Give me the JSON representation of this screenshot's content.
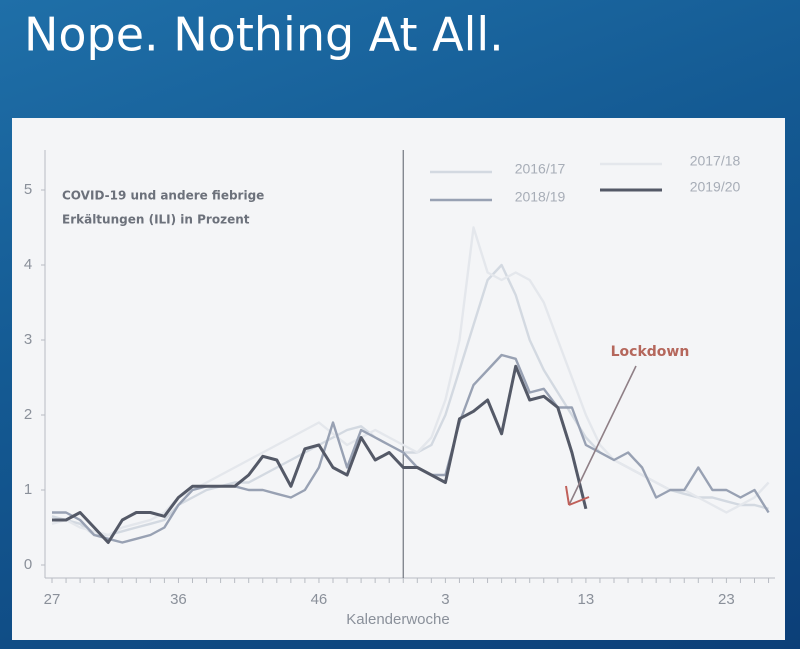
{
  "slide_title": "Nope.  Nothing At All.",
  "chart_data": {
    "type": "line",
    "title": [
      "COVID-19 und andere fiebrige",
      "Erkältungen (ILI) in Prozent"
    ],
    "x_label": "Kalenderwoche",
    "categories": [
      "27",
      null,
      null,
      null,
      null,
      null,
      null,
      null,
      null,
      "36",
      null,
      null,
      null,
      null,
      null,
      null,
      null,
      null,
      null,
      "46",
      null,
      null,
      null,
      null,
      null,
      null,
      null,
      null,
      "3",
      null,
      null,
      null,
      null,
      null,
      null,
      null,
      null,
      null,
      "13",
      null,
      null,
      null,
      null,
      null,
      null,
      null,
      null,
      null,
      "23",
      null,
      null,
      null
    ],
    "ylim": [
      -0.17,
      5.3
    ],
    "yticks": [
      0,
      1,
      2,
      3,
      4,
      5
    ],
    "annotation": "Lockdown",
    "series": [
      {
        "name": "2016/17",
        "color": "#d3d9e1",
        "values": [
          0.65,
          0.6,
          0.55,
          0.4,
          0.4,
          0.45,
          0.5,
          0.55,
          0.6,
          0.8,
          0.9,
          1.0,
          1.05,
          1.1,
          1.1,
          1.2,
          1.3,
          1.4,
          1.5,
          1.6,
          1.7,
          1.8,
          1.85,
          1.7,
          1.6,
          1.5,
          1.5,
          1.6,
          2.0,
          2.6,
          3.2,
          3.8,
          4.0,
          3.6,
          3.0,
          2.6,
          2.3,
          2.0,
          1.7,
          1.5,
          1.4,
          1.3,
          1.2,
          1.1,
          1.0,
          0.95,
          0.9,
          0.9,
          0.85,
          0.8,
          0.8,
          0.75
        ]
      },
      {
        "name": "2017/18",
        "color": "#e4e7ec",
        "values": [
          0.55,
          0.6,
          0.5,
          0.45,
          0.4,
          0.5,
          0.55,
          0.6,
          0.7,
          0.9,
          1.0,
          1.1,
          1.2,
          1.3,
          1.4,
          1.5,
          1.6,
          1.7,
          1.8,
          1.9,
          1.75,
          1.6,
          1.7,
          1.8,
          1.7,
          1.6,
          1.5,
          1.7,
          2.2,
          3.0,
          4.5,
          3.9,
          3.8,
          3.9,
          3.8,
          3.5,
          3.0,
          2.5,
          2.0,
          1.6,
          1.4,
          1.3,
          1.2,
          1.1,
          1.0,
          1.0,
          0.9,
          0.8,
          0.7,
          0.8,
          0.9,
          1.1
        ]
      },
      {
        "name": "2018/19",
        "color": "#98a1b3",
        "values": [
          0.7,
          0.7,
          0.6,
          0.4,
          0.35,
          0.3,
          0.35,
          0.4,
          0.5,
          0.8,
          1.0,
          1.05,
          1.05,
          1.05,
          1.0,
          1.0,
          0.95,
          0.9,
          1.0,
          1.3,
          1.9,
          1.3,
          1.8,
          1.7,
          1.6,
          1.5,
          1.3,
          1.2,
          1.2,
          1.9,
          2.4,
          2.6,
          2.8,
          2.75,
          2.3,
          2.35,
          2.1,
          2.1,
          1.6,
          1.5,
          1.4,
          1.5,
          1.3,
          0.9,
          1.0,
          1.0,
          1.3,
          1.0,
          1.0,
          0.9,
          1.0,
          0.7
        ]
      },
      {
        "name": "2019/20",
        "color": "#545967",
        "values": [
          0.6,
          0.6,
          0.7,
          0.5,
          0.3,
          0.6,
          0.7,
          0.7,
          0.65,
          0.9,
          1.05,
          1.05,
          1.05,
          1.05,
          1.2,
          1.45,
          1.4,
          1.05,
          1.55,
          1.6,
          1.3,
          1.2,
          1.7,
          1.4,
          1.5,
          1.3,
          1.3,
          1.2,
          1.1,
          1.95,
          2.05,
          2.2,
          1.75,
          2.65,
          2.2,
          2.25,
          2.1,
          1.5,
          0.75,
          null,
          null,
          null,
          null,
          null,
          null,
          null,
          null,
          null,
          null,
          null,
          null,
          null
        ]
      }
    ]
  }
}
